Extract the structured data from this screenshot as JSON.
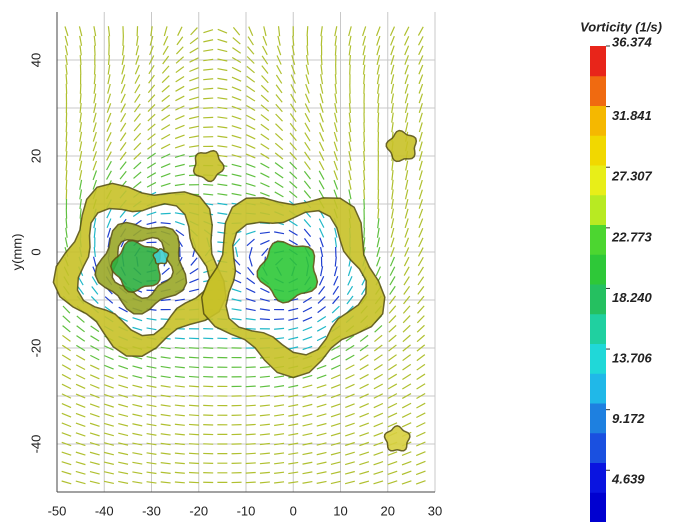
{
  "chart_data": {
    "type": "vector-field",
    "ylabel": "y(mm)",
    "xlim": [
      -50,
      30
    ],
    "xticks": [
      -50,
      -40,
      -30,
      -20,
      -10,
      0,
      10,
      20,
      30
    ],
    "ylim": [
      -50,
      50
    ],
    "yticks": [
      -40,
      -20,
      0,
      20,
      40
    ],
    "ygrid": [
      -30,
      -10,
      10,
      30
    ],
    "grid": true,
    "colorbar": {
      "title": "Vorticity (1/s)",
      "lim": [
        0.77,
        36.374
      ],
      "ticks": [
        36.374,
        31.841,
        27.307,
        22.773,
        {
          "value": 18.24,
          "label": "18.240"
        },
        13.706,
        9.172,
        4.639
      ],
      "colors": [
        "#0000d0",
        "#0a14e0",
        "#1a50e0",
        "#1e80e0",
        "#20b8e8",
        "#20d8d8",
        "#20d0a0",
        "#25c060",
        "#2ec838",
        "#4cd630",
        "#b8ea22",
        "#e8ee18",
        "#f1d800",
        "#f5b800",
        "#f06a10",
        "#e8251a"
      ]
    }
  }
}
